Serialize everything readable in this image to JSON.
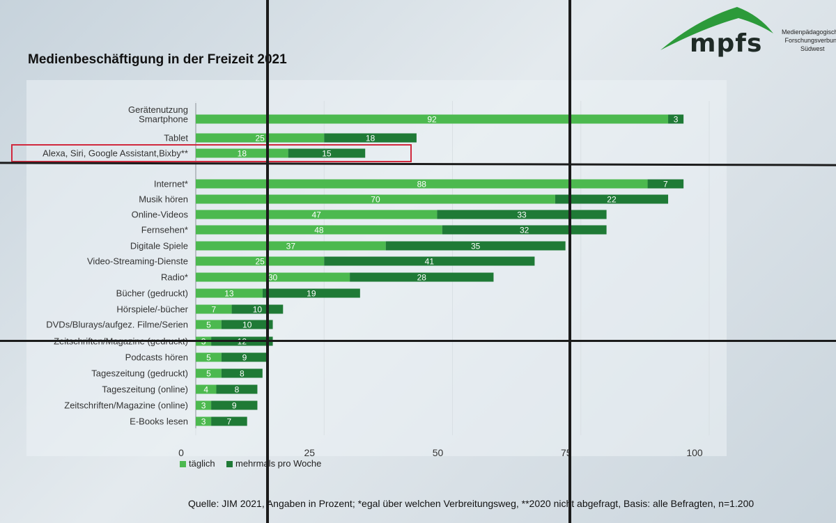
{
  "title": "Medienbeschäftigung in der Freizeit 2021",
  "logo": {
    "name": "mpfs",
    "subtitle_lines": [
      "Medienpädagogischer",
      "Forschungsverbund",
      "Südwest"
    ]
  },
  "source": "Quelle: JIM 2021, Angaben in Prozent; *egal über welchen Verbreitungsweg, **2020 nicht abgefragt, Basis: alle Befragten, n=1.200",
  "colors": {
    "daily": "#4cb94f",
    "weekly": "#1f7a36",
    "highlight": "#d0283d",
    "grid": "#d9e0e4"
  },
  "chart_data": {
    "type": "bar",
    "orientation": "horizontal",
    "stacked": true,
    "title": "Medienbeschäftigung in der Freizeit 2021",
    "xlim": [
      0,
      100
    ],
    "xticks": [
      0,
      25,
      50,
      75,
      100
    ],
    "section_label": "Gerätenutzung",
    "categories": [
      "Smartphone",
      "Tablet",
      "Alexa, Siri, Google Assistant,Bixby**",
      "Internet*",
      "Musik hören",
      "Online-Videos",
      "Fernsehen*",
      "Digitale Spiele",
      "Video-Streaming-Dienste",
      "Radio*",
      "Bücher (gedruckt)",
      "Hörspiele/-bücher",
      "DVDs/Blurays/aufgez. Filme/Serien",
      "Zeitschriften/Magazine (gedruckt)",
      "Podcasts hören",
      "Tageszeitung (gedruckt)",
      "Tageszeitung (online)",
      "Zeitschriften/Magazine (online)",
      "E-Books lesen"
    ],
    "highlighted_category": "Alexa, Siri, Google Assistant,Bixby**",
    "series": [
      {
        "name": "täglich",
        "values": [
          92,
          25,
          18,
          88,
          70,
          47,
          48,
          37,
          25,
          30,
          13,
          7,
          5,
          3,
          5,
          5,
          4,
          3,
          3
        ]
      },
      {
        "name": "mehrmals pro Woche",
        "values": [
          3,
          18,
          15,
          7,
          22,
          33,
          32,
          35,
          41,
          28,
          19,
          10,
          10,
          12,
          9,
          8,
          8,
          9,
          7
        ]
      }
    ],
    "legend": [
      "täglich",
      "mehrmals pro Woche"
    ],
    "legend_position": "bottom-left"
  }
}
